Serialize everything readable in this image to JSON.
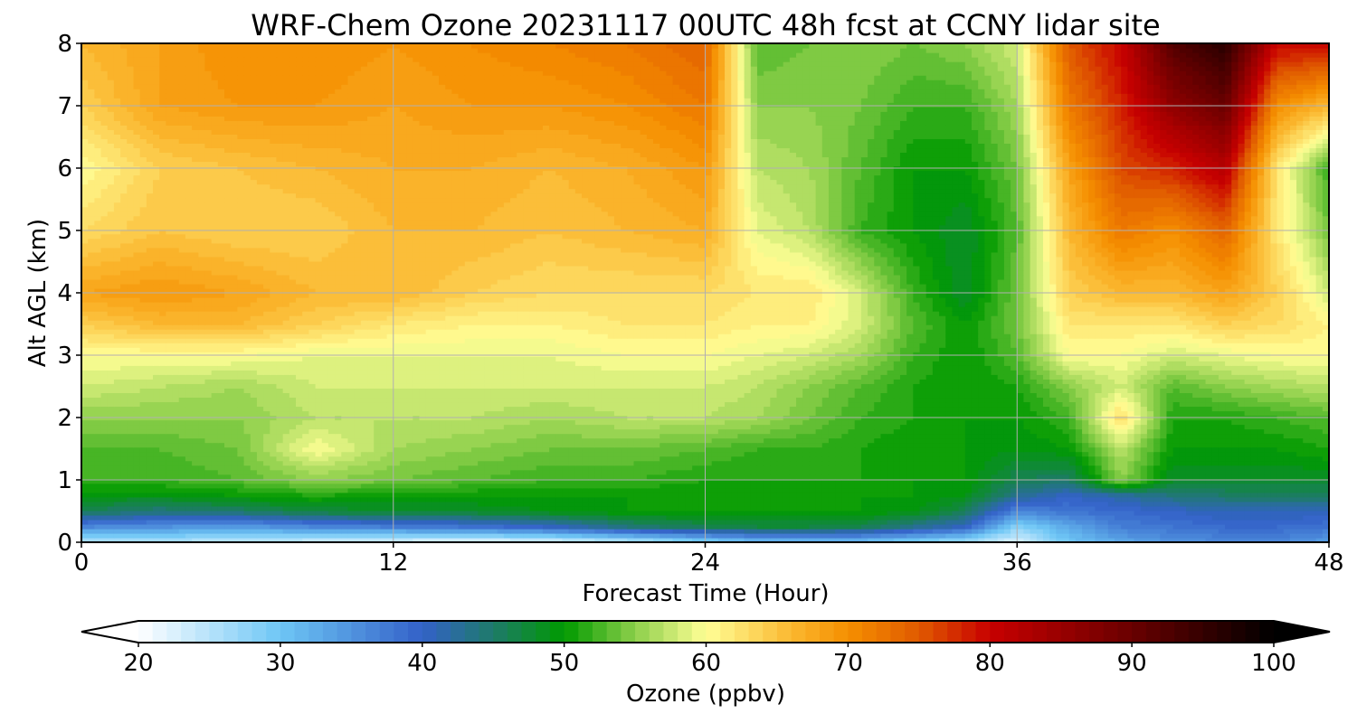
{
  "chart_data": {
    "type": "heatmap",
    "title": "WRF-Chem Ozone  20231117 00UTC 48h fcst at CCNY lidar site",
    "xlabel": "Forecast Time (Hour)",
    "ylabel": "Alt AGL (km)",
    "xlim": [
      0,
      48
    ],
    "ylim": [
      0,
      8
    ],
    "x_ticks": [
      0,
      12,
      24,
      36,
      48
    ],
    "y_ticks": [
      0,
      1,
      2,
      3,
      4,
      5,
      6,
      7,
      8
    ],
    "grid": true,
    "colorbar": {
      "label": "Ozone  (ppbv)",
      "min": 20,
      "max": 100,
      "step": 1,
      "ticks": [
        20,
        30,
        40,
        50,
        60,
        70,
        80,
        90,
        100
      ],
      "extend": "both",
      "stops": [
        {
          "value": 20,
          "color": "#ffffff"
        },
        {
          "value": 30,
          "color": "#6ec6f5"
        },
        {
          "value": 40,
          "color": "#3361c8"
        },
        {
          "value": 45,
          "color": "#1e7a6a"
        },
        {
          "value": 50,
          "color": "#009a00"
        },
        {
          "value": 55,
          "color": "#8dcf4a"
        },
        {
          "value": 60,
          "color": "#ffff96"
        },
        {
          "value": 66,
          "color": "#fbb830"
        },
        {
          "value": 70,
          "color": "#f58f00"
        },
        {
          "value": 75,
          "color": "#e05a00"
        },
        {
          "value": 80,
          "color": "#c80000"
        },
        {
          "value": 90,
          "color": "#690000"
        },
        {
          "value": 100,
          "color": "#000000"
        }
      ]
    },
    "x": [
      0,
      3,
      6,
      9,
      12,
      15,
      18,
      21,
      24,
      26,
      28,
      30,
      32,
      34,
      36,
      38,
      40,
      42,
      44,
      46,
      48
    ],
    "y": [
      0,
      0.25,
      0.5,
      0.75,
      1,
      1.5,
      2,
      2.5,
      3,
      3.5,
      4,
      5,
      6,
      7,
      8
    ],
    "z": [
      [
        25,
        25,
        24,
        23,
        22,
        21,
        22,
        24,
        28,
        30,
        30,
        30,
        28,
        26,
        22,
        30,
        33,
        35,
        36,
        36,
        34
      ],
      [
        36,
        35,
        34,
        36,
        37,
        38,
        40,
        44,
        46,
        47,
        47,
        46,
        43,
        40,
        28,
        33,
        37,
        38,
        39,
        39,
        38
      ],
      [
        46,
        44,
        45,
        47,
        48,
        48,
        49,
        50,
        50,
        50,
        50,
        50,
        49,
        46,
        36,
        38,
        39,
        40,
        41,
        41,
        41
      ],
      [
        49,
        49,
        50,
        51,
        50,
        50,
        50,
        50,
        50,
        50,
        50,
        50,
        50,
        49,
        43,
        40,
        42,
        44,
        45,
        45,
        45
      ],
      [
        52,
        52,
        53,
        55,
        54,
        53,
        52,
        52,
        51,
        51,
        51,
        51,
        50,
        50,
        46,
        45,
        55,
        48,
        48,
        48,
        48
      ],
      [
        53,
        53,
        54,
        60,
        56,
        55,
        54,
        54,
        53,
        52,
        52,
        51,
        50,
        50,
        49,
        50,
        57,
        50,
        50,
        50,
        51
      ],
      [
        55,
        55,
        55,
        57,
        57,
        57,
        56,
        57,
        57,
        56,
        54,
        52,
        51,
        50,
        50,
        52,
        63,
        51,
        51,
        52,
        53
      ],
      [
        58,
        57,
        56,
        58,
        58,
        58,
        58,
        58,
        58,
        57,
        55,
        53,
        51,
        50,
        51,
        55,
        58,
        53,
        55,
        56,
        57
      ],
      [
        60,
        60,
        60,
        59,
        59,
        59,
        59,
        60,
        60,
        59,
        58,
        56,
        52,
        50,
        53,
        60,
        60,
        58,
        59,
        60,
        60
      ],
      [
        64,
        66,
        66,
        64,
        62,
        61,
        61,
        62,
        62,
        61,
        61,
        58,
        53,
        50,
        54,
        62,
        62,
        62,
        64,
        63,
        61
      ],
      [
        68,
        69,
        68,
        66,
        66,
        64,
        63,
        63,
        63,
        62,
        62,
        58,
        52,
        48,
        54,
        64,
        66,
        66,
        68,
        64,
        58
      ],
      [
        63,
        65,
        64,
        64,
        66,
        66,
        65,
        66,
        67,
        59,
        57,
        52,
        50,
        48,
        53,
        66,
        72,
        70,
        74,
        62,
        54
      ],
      [
        60,
        64,
        65,
        66,
        67,
        67,
        66,
        67,
        69,
        57,
        56,
        53,
        50,
        50,
        54,
        68,
        76,
        78,
        82,
        62,
        52
      ],
      [
        64,
        68,
        69,
        69,
        68,
        69,
        69,
        70,
        72,
        55,
        55,
        54,
        52,
        52,
        56,
        72,
        78,
        86,
        90,
        70,
        66
      ],
      [
        66,
        68,
        70,
        70,
        69,
        70,
        71,
        72,
        74,
        53,
        54,
        55,
        54,
        55,
        58,
        75,
        80,
        92,
        96,
        80,
        80
      ]
    ]
  }
}
